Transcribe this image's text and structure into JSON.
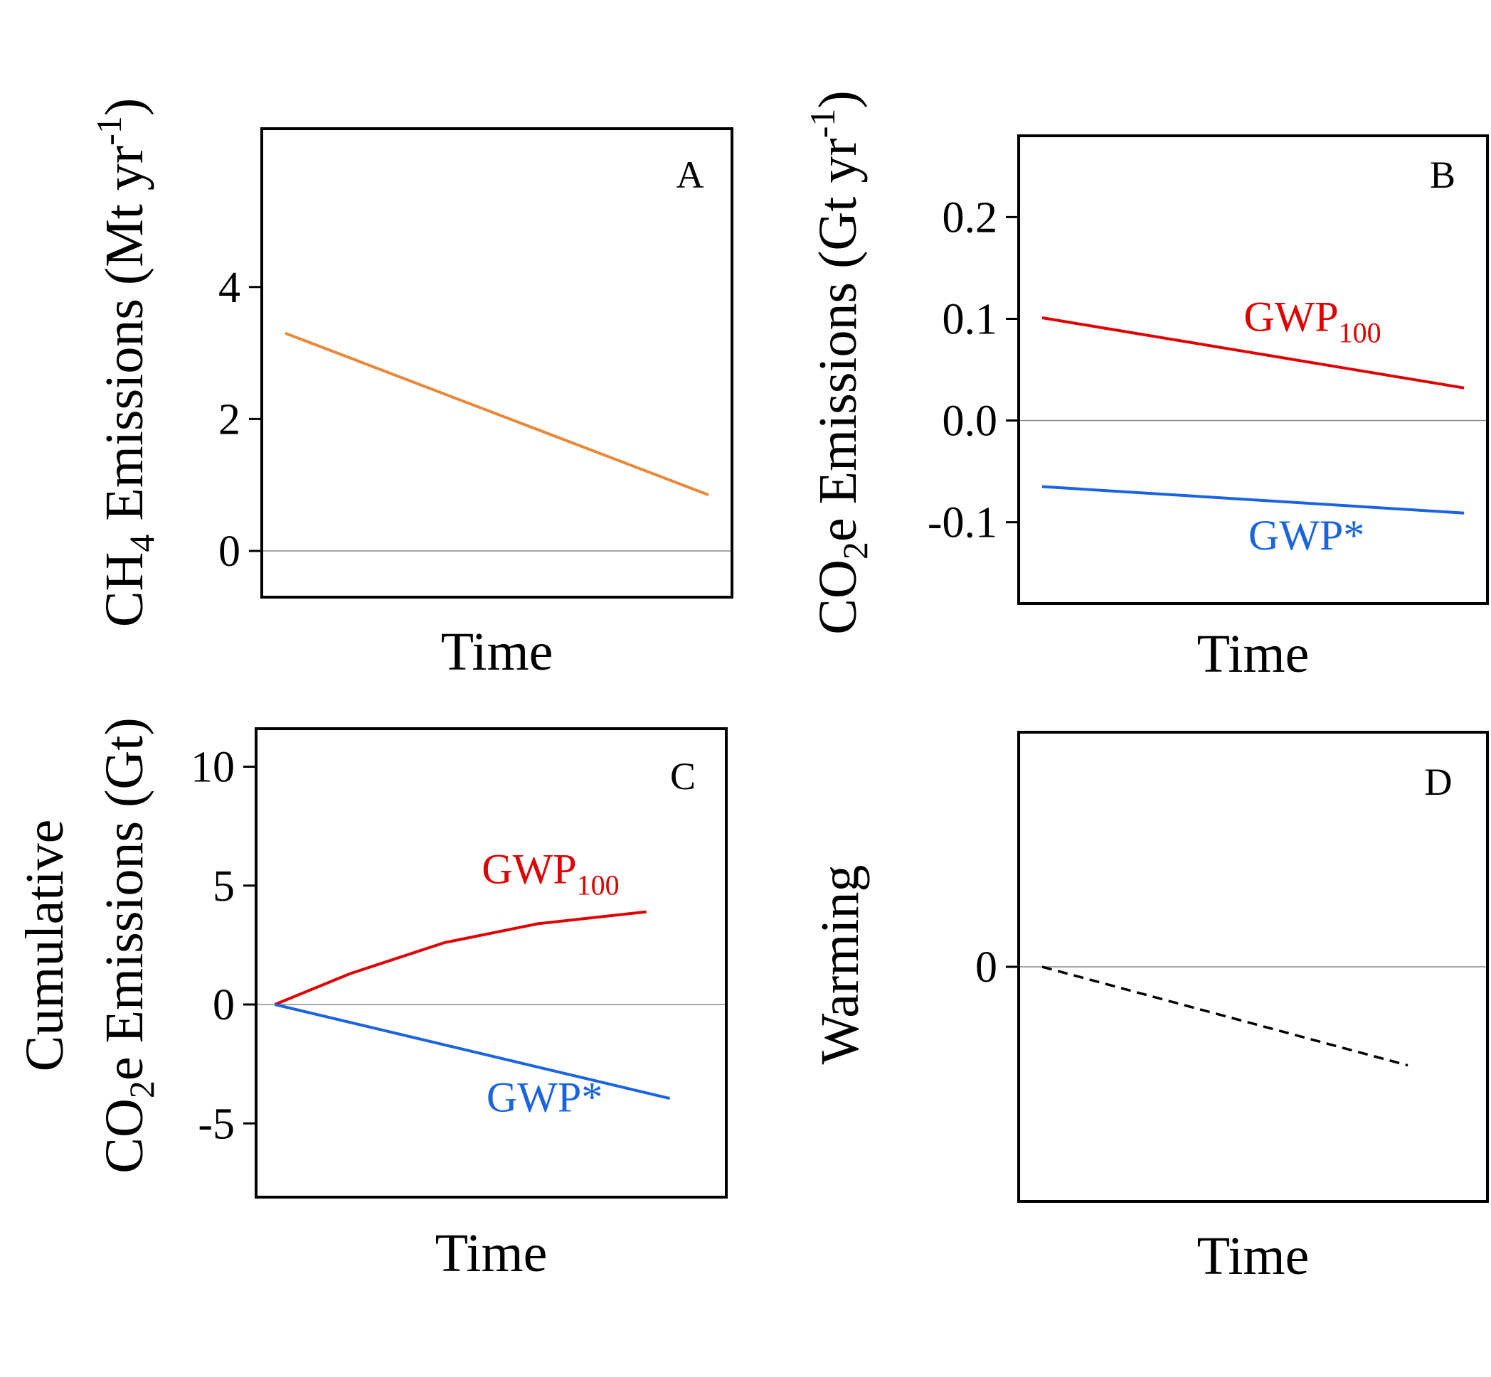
{
  "colors": {
    "gwp100": "#e00000",
    "gwpstar": "#1a64e0",
    "ch4": "#e8893a",
    "warming": "#000000",
    "zeroline": "#8a8a8a"
  },
  "chart_data": [
    {
      "panel": "A",
      "type": "line",
      "xlabel": "Time",
      "ylabel_parts": {
        "pre": "CH",
        "sub": "4",
        "mid": " Emissions (Mt yr",
        "sup": "-1",
        "post": ")"
      },
      "yticks": [
        0,
        2,
        4
      ],
      "ytick_labels": [
        "0",
        "2",
        "4"
      ],
      "ylim": [
        -0.7,
        6.4
      ],
      "xlim": [
        0,
        1
      ],
      "zero_line": true,
      "series": [
        {
          "color": "#e8893a",
          "x": [
            0.05,
            0.95
          ],
          "y": [
            3.3,
            0.85
          ]
        }
      ],
      "annotations": []
    },
    {
      "panel": "B",
      "type": "line",
      "xlabel": "Time",
      "ylabel_parts": {
        "pre": "CO",
        "sub": "2",
        "mid": "e Emissions (Gt yr",
        "sup": "-1",
        "post": ")"
      },
      "yticks": [
        -0.1,
        0.0,
        0.1,
        0.2
      ],
      "ytick_labels": [
        "-0.1",
        "0.0",
        "0.1",
        "0.2"
      ],
      "ylim": [
        -0.18,
        0.28
      ],
      "xlim": [
        0,
        1
      ],
      "zero_line": true,
      "series": [
        {
          "color": "#e00000",
          "x": [
            0.05,
            0.95
          ],
          "y": [
            0.101,
            0.032
          ]
        },
        {
          "color": "#1a64e0",
          "x": [
            0.05,
            0.95
          ],
          "y": [
            -0.065,
            -0.091
          ]
        }
      ],
      "annotations": [
        {
          "main": "GWP",
          "sub": "100",
          "color": "#e00000",
          "x": 0.48,
          "y": 0.088
        },
        {
          "main": "GWP*",
          "sub": "",
          "color": "#1a64e0",
          "x": 0.49,
          "y": -0.127
        }
      ]
    },
    {
      "panel": "C",
      "type": "line",
      "xlabel": "Time",
      "ylabel_line1": "Cumulative",
      "ylabel_parts": {
        "pre": "CO",
        "sub": "2",
        "mid": "e Emissions (Gt)",
        "sup": "",
        "post": ""
      },
      "yticks": [
        -5,
        0,
        5,
        10
      ],
      "ytick_labels": [
        "-5",
        "0",
        "5",
        "10"
      ],
      "ylim": [
        -8.1,
        11.6
      ],
      "xlim": [
        0,
        1
      ],
      "zero_line": true,
      "series": [
        {
          "color": "#e00000",
          "x": [
            0.04,
            0.2,
            0.4,
            0.6,
            0.83
          ],
          "y": [
            0,
            1.3,
            2.6,
            3.4,
            3.9
          ]
        },
        {
          "color": "#1a64e0",
          "x": [
            0.04,
            0.88
          ],
          "y": [
            0,
            -3.95
          ]
        }
      ],
      "annotations": [
        {
          "main": "GWP",
          "sub": "100",
          "color": "#e00000",
          "x": 0.48,
          "y": 5.1
        },
        {
          "main": "GWP*",
          "sub": "",
          "color": "#1a64e0",
          "x": 0.49,
          "y": -4.5
        }
      ]
    },
    {
      "panel": "D",
      "type": "line",
      "xlabel": "Time",
      "ylabel_parts": {
        "pre": "Warming",
        "sub": "",
        "mid": "",
        "sup": "",
        "post": ""
      },
      "yticks": [
        0
      ],
      "ytick_labels": [
        "0"
      ],
      "ylim": [
        -1.0,
        1.0
      ],
      "xlim": [
        0,
        1
      ],
      "zero_line": true,
      "series": [
        {
          "color": "#000000",
          "dashed": true,
          "x": [
            0.05,
            0.83
          ],
          "y": [
            0,
            -0.42
          ]
        }
      ],
      "annotations": []
    }
  ]
}
